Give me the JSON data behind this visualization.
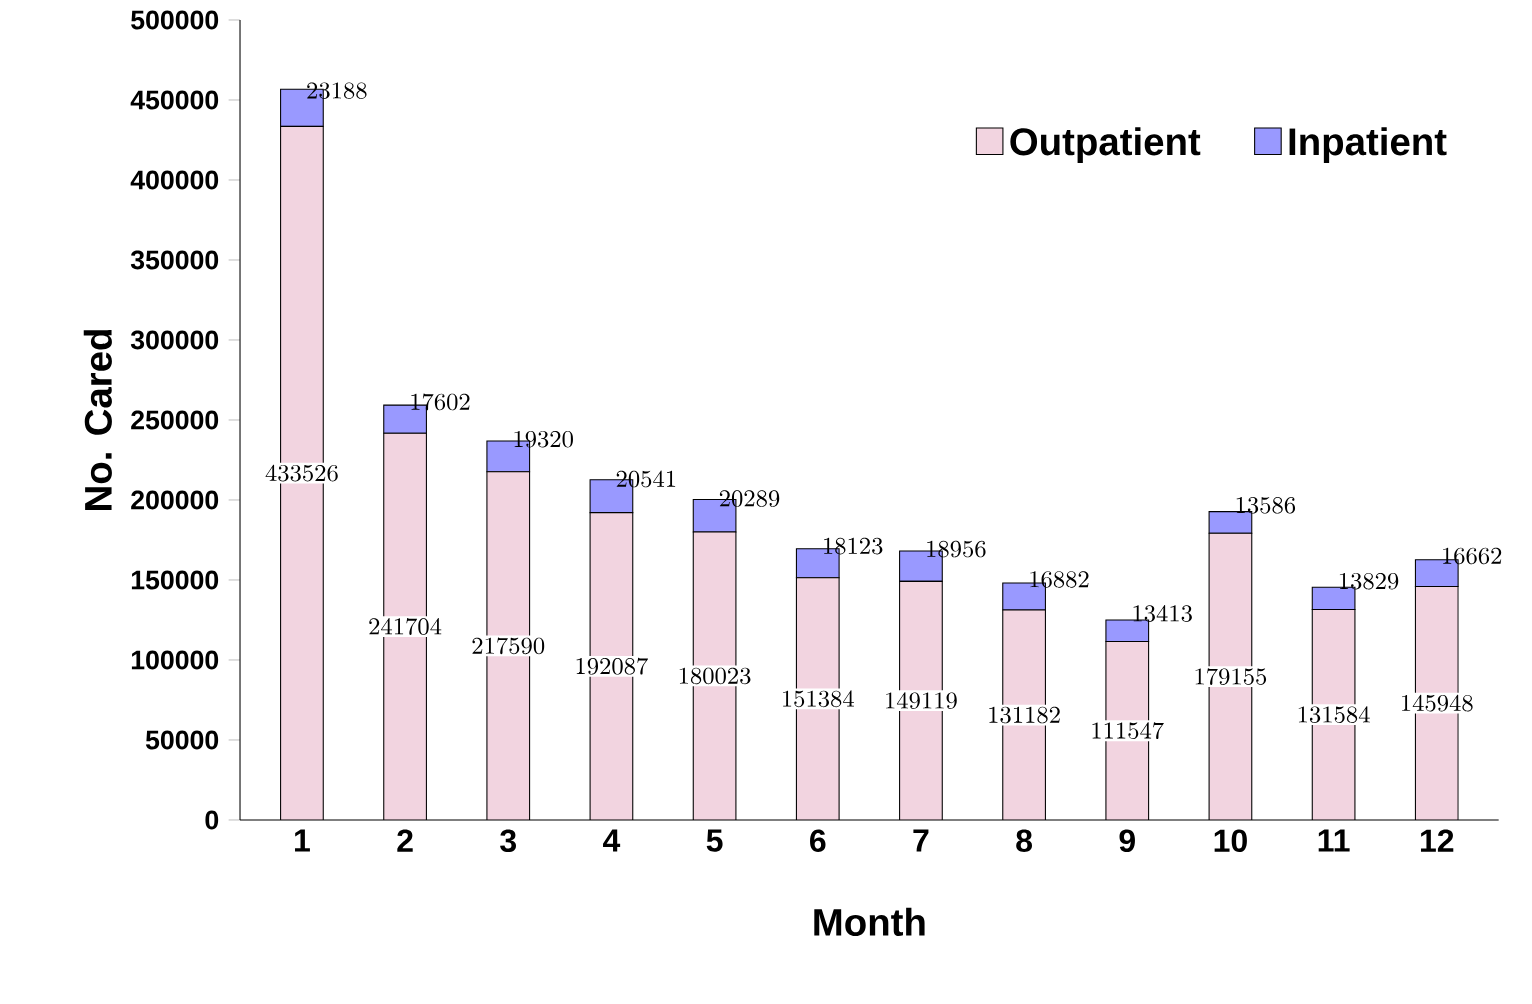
{
  "chart_data": {
    "type": "bar",
    "stacked": true,
    "xlabel": "Month",
    "ylabel": "No. Cared",
    "categories": [
      "1",
      "2",
      "3",
      "4",
      "5",
      "6",
      "7",
      "8",
      "9",
      "10",
      "11",
      "12"
    ],
    "series": [
      {
        "name": "Outpatient",
        "color": "#f2d4e0",
        "values": [
          433526,
          241704,
          217590,
          192087,
          180023,
          151384,
          149119,
          131182,
          111547,
          179155,
          131584,
          145948
        ]
      },
      {
        "name": "Inpatient",
        "color": "#9999ff",
        "values": [
          23188,
          17602,
          19320,
          20541,
          20289,
          18123,
          18956,
          16882,
          13413,
          13586,
          13829,
          16662
        ]
      }
    ],
    "ylim": [
      0,
      500000
    ],
    "yticks": [
      0,
      50000,
      100000,
      150000,
      200000,
      250000,
      300000,
      350000,
      400000,
      450000,
      500000
    ],
    "legend": "top right",
    "data_labels": true
  }
}
